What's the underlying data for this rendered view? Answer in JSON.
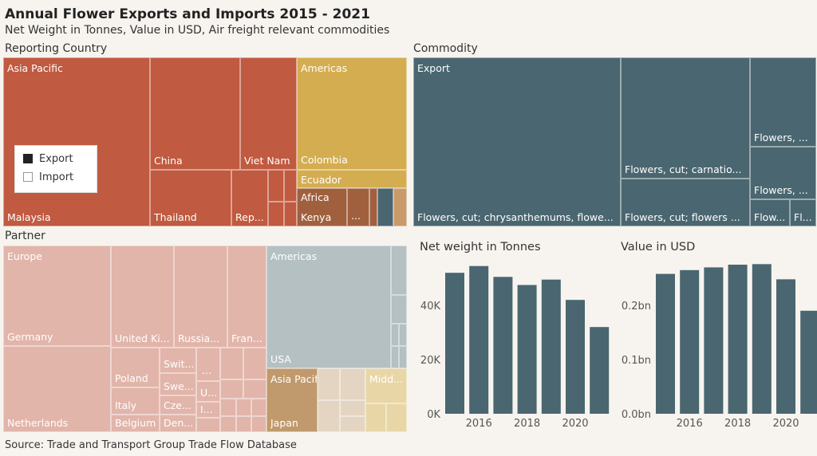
{
  "header": {
    "title": "Annual Flower Exports and Imports 2015 - 2021",
    "subtitle": "Net Weight in Tonnes, Value in USD, Air freight relevant commodities"
  },
  "sections": {
    "reporting": "Reporting Country",
    "commodity": "Commodity",
    "partner": "Partner",
    "weight": "Net weight in Tonnes",
    "value": "Value in USD"
  },
  "legend": {
    "export": "Export",
    "import": "Import"
  },
  "labels": {
    "rep": {
      "asia_pacific": "Asia Pacific",
      "china": "China",
      "viet_nam": "Viet Nam",
      "malaysia": "Malaysia",
      "thailand": "Thailand",
      "rep": "Rep...",
      "americas": "Americas",
      "colombia": "Colombia",
      "ecuador": "Ecuador",
      "africa": "Africa",
      "kenya": "Kenya",
      "ellipsis": "..."
    },
    "com": {
      "export": "Export",
      "chrys": "Flowers, cut; chrysanthemums, flowe...",
      "carnation": "Flowers, cut; carnatio...",
      "flowers_cut": "Flowers, cut; flowers ...",
      "flowers1": "Flowers, ...",
      "flowers2": "Flowers, ...",
      "flow": "Flow...",
      "fl": "Fl..."
    },
    "par": {
      "europe": "Europe",
      "germany": "Germany",
      "netherlands": "Netherlands",
      "uk": "United Ki...",
      "russia": "Russia...",
      "france": "Fran...",
      "poland": "Poland",
      "italy": "Italy",
      "belgium": "Belgium",
      "switz": "Swit...",
      "sweden": "Swe...",
      "czech": "Cze...",
      "denmark": "Den...",
      "dots": "...",
      "u": "U...",
      "i": "I...",
      "americas": "Americas",
      "usa": "USA",
      "asia_pacific": "Asia Pacific",
      "japan": "Japan",
      "middle": "Midd..."
    }
  },
  "colors": {
    "export_rep": "#c05a40",
    "americas_rep": "#d4ad50",
    "africa_rep": "#a0603e",
    "commodity": "#4a6670",
    "europe_partner": "#e2b5aa",
    "americas_partner": "#b4c0c2",
    "asia_partner": "#c09a6c",
    "asia_partner_light": "#e4d5c2",
    "middle_partner": "#e8d6a6",
    "bar": "#4a6670"
  },
  "chart_data": [
    {
      "type": "bar",
      "title": "Net weight in Tonnes",
      "x": [
        2015,
        2016,
        2017,
        2018,
        2019,
        2020,
        2021
      ],
      "values": [
        52000,
        54500,
        50500,
        47500,
        49500,
        42000,
        32000
      ],
      "ylim": [
        0,
        60000
      ],
      "yticks": [
        0,
        20000,
        40000
      ],
      "ytick_labels": [
        "0K",
        "20K",
        "40K"
      ],
      "xtick_labels": [
        "2016",
        "2018",
        "2020"
      ]
    },
    {
      "type": "bar",
      "title": "Value in USD",
      "x": [
        2015,
        2016,
        2017,
        2018,
        2019,
        2020,
        2021
      ],
      "values": [
        0.258,
        0.265,
        0.27,
        0.275,
        0.276,
        0.248,
        0.19
      ],
      "ylim": [
        0,
        0.3
      ],
      "yticks": [
        0,
        0.1,
        0.2
      ],
      "ytick_labels": [
        "0.0bn",
        "0.1bn",
        "0.2bn"
      ],
      "xtick_labels": [
        "2016",
        "2018",
        "2020"
      ]
    }
  ],
  "source": "Source: Trade and Transport Group Trade Flow Database"
}
